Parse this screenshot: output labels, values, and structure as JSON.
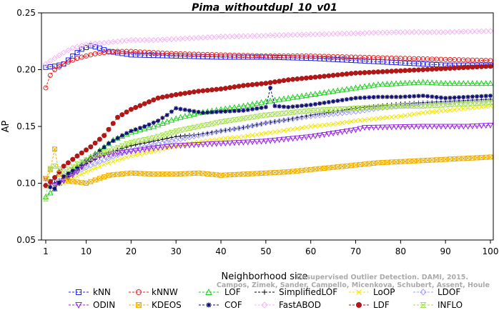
{
  "chart_data": {
    "type": "line",
    "title": "Pima_withoutdupl_10_v01",
    "xlabel": "Neighborhood size",
    "ylabel": "AP",
    "xlim": [
      1,
      100
    ],
    "ylim": [
      0.05,
      0.25
    ],
    "xticks": [
      1,
      10,
      20,
      30,
      40,
      50,
      60,
      70,
      80,
      90,
      100
    ],
    "yticks": [
      0.05,
      0.1,
      0.15,
      0.2,
      0.25
    ],
    "ytick_labels": [
      "0.05",
      "0.10",
      "0.15",
      "0.20",
      "0.25"
    ],
    "grid": false,
    "legend_position": "bottom",
    "credit_lines": [
      "Unsupervised Outlier Detection. DAMI, 2015.",
      "Campos, Zimek, Sander, Campello, Micenkova, Schubert, Assent, Houle"
    ],
    "series": [
      {
        "name": "kNN",
        "color": "#1f1fe6",
        "marker": "square",
        "points": [
          [
            1,
            0.202
          ],
          [
            3,
            0.203
          ],
          [
            5,
            0.205
          ],
          [
            7,
            0.212
          ],
          [
            9,
            0.218
          ],
          [
            11,
            0.221
          ],
          [
            13,
            0.219
          ],
          [
            15,
            0.216
          ],
          [
            20,
            0.213
          ],
          [
            30,
            0.212
          ],
          [
            40,
            0.211
          ],
          [
            50,
            0.211
          ],
          [
            60,
            0.21
          ],
          [
            70,
            0.208
          ],
          [
            80,
            0.206
          ],
          [
            90,
            0.204
          ],
          [
            100,
            0.204
          ]
        ]
      },
      {
        "name": "kNNW",
        "color": "#e62020",
        "marker": "circle",
        "points": [
          [
            1,
            0.184
          ],
          [
            2,
            0.195
          ],
          [
            3,
            0.2
          ],
          [
            5,
            0.205
          ],
          [
            8,
            0.21
          ],
          [
            12,
            0.214
          ],
          [
            16,
            0.216
          ],
          [
            20,
            0.216
          ],
          [
            30,
            0.214
          ],
          [
            40,
            0.213
          ],
          [
            50,
            0.212
          ],
          [
            60,
            0.212
          ],
          [
            70,
            0.211
          ],
          [
            80,
            0.21
          ],
          [
            90,
            0.209
          ],
          [
            100,
            0.208
          ]
        ]
      },
      {
        "name": "LOF",
        "color": "#20d020",
        "marker": "triangle",
        "points": [
          [
            1,
            0.088
          ],
          [
            3,
            0.095
          ],
          [
            5,
            0.105
          ],
          [
            8,
            0.115
          ],
          [
            12,
            0.126
          ],
          [
            16,
            0.138
          ],
          [
            20,
            0.145
          ],
          [
            25,
            0.15
          ],
          [
            30,
            0.157
          ],
          [
            35,
            0.162
          ],
          [
            40,
            0.165
          ],
          [
            45,
            0.168
          ],
          [
            50,
            0.172
          ],
          [
            55,
            0.175
          ],
          [
            60,
            0.178
          ],
          [
            65,
            0.181
          ],
          [
            70,
            0.184
          ],
          [
            75,
            0.187
          ],
          [
            80,
            0.188
          ],
          [
            85,
            0.189
          ],
          [
            90,
            0.188
          ],
          [
            95,
            0.188
          ],
          [
            100,
            0.188
          ]
        ]
      },
      {
        "name": "SimplifiedLOF",
        "color": "#000000",
        "marker": "plus",
        "points": [
          [
            1,
            0.098
          ],
          [
            5,
            0.103
          ],
          [
            10,
            0.117
          ],
          [
            15,
            0.127
          ],
          [
            20,
            0.133
          ],
          [
            25,
            0.137
          ],
          [
            30,
            0.141
          ],
          [
            35,
            0.143
          ],
          [
            40,
            0.146
          ],
          [
            45,
            0.149
          ],
          [
            50,
            0.153
          ],
          [
            55,
            0.156
          ],
          [
            60,
            0.16
          ],
          [
            65,
            0.163
          ],
          [
            70,
            0.166
          ],
          [
            75,
            0.168
          ],
          [
            80,
            0.17
          ],
          [
            85,
            0.171
          ],
          [
            90,
            0.172
          ],
          [
            95,
            0.173
          ],
          [
            100,
            0.174
          ]
        ]
      },
      {
        "name": "LoOP",
        "color": "#f2e600",
        "marker": "x",
        "points": [
          [
            1,
            0.097
          ],
          [
            5,
            0.1
          ],
          [
            10,
            0.11
          ],
          [
            15,
            0.118
          ],
          [
            20,
            0.124
          ],
          [
            25,
            0.128
          ],
          [
            30,
            0.133
          ],
          [
            35,
            0.136
          ],
          [
            40,
            0.139
          ],
          [
            45,
            0.141
          ],
          [
            50,
            0.144
          ],
          [
            55,
            0.147
          ],
          [
            60,
            0.15
          ],
          [
            65,
            0.152
          ],
          [
            70,
            0.155
          ],
          [
            75,
            0.157
          ],
          [
            80,
            0.159
          ],
          [
            85,
            0.162
          ],
          [
            90,
            0.164
          ],
          [
            95,
            0.166
          ],
          [
            100,
            0.168
          ]
        ]
      },
      {
        "name": "LDOF",
        "color": "#a0a0ff",
        "marker": "diamond",
        "points": [
          [
            1,
            0.098
          ],
          [
            5,
            0.104
          ],
          [
            10,
            0.114
          ],
          [
            15,
            0.122
          ],
          [
            20,
            0.129
          ],
          [
            25,
            0.134
          ],
          [
            30,
            0.138
          ],
          [
            35,
            0.142
          ],
          [
            40,
            0.146
          ],
          [
            45,
            0.149
          ],
          [
            50,
            0.153
          ],
          [
            55,
            0.156
          ],
          [
            60,
            0.159
          ],
          [
            65,
            0.161
          ],
          [
            70,
            0.163
          ],
          [
            75,
            0.166
          ],
          [
            80,
            0.168
          ],
          [
            85,
            0.17
          ],
          [
            90,
            0.171
          ],
          [
            95,
            0.172
          ],
          [
            100,
            0.173
          ]
        ]
      },
      {
        "name": "ODIN",
        "color": "#9a20e6",
        "marker": "triangle-down",
        "points": [
          [
            1,
            0.104
          ],
          [
            3,
            0.098
          ],
          [
            5,
            0.102
          ],
          [
            8,
            0.11
          ],
          [
            10,
            0.118
          ],
          [
            13,
            0.124
          ],
          [
            16,
            0.126
          ],
          [
            20,
            0.128
          ],
          [
            25,
            0.131
          ],
          [
            30,
            0.133
          ],
          [
            35,
            0.134
          ],
          [
            40,
            0.135
          ],
          [
            45,
            0.136
          ],
          [
            50,
            0.137
          ],
          [
            55,
            0.139
          ],
          [
            60,
            0.141
          ],
          [
            65,
            0.144
          ],
          [
            70,
            0.147
          ],
          [
            72,
            0.149
          ],
          [
            85,
            0.15
          ],
          [
            90,
            0.15
          ],
          [
            95,
            0.15
          ],
          [
            100,
            0.151
          ]
        ]
      },
      {
        "name": "KDEOS",
        "color": "#f0b000",
        "marker": "square-x",
        "points": [
          [
            1,
            0.104
          ],
          [
            2,
            0.112
          ],
          [
            3,
            0.13
          ],
          [
            4,
            0.108
          ],
          [
            6,
            0.102
          ],
          [
            10,
            0.1
          ],
          [
            15,
            0.107
          ],
          [
            20,
            0.109
          ],
          [
            25,
            0.108
          ],
          [
            30,
            0.108
          ],
          [
            35,
            0.109
          ],
          [
            40,
            0.107
          ],
          [
            45,
            0.108
          ],
          [
            50,
            0.109
          ],
          [
            55,
            0.11
          ],
          [
            60,
            0.112
          ],
          [
            65,
            0.114
          ],
          [
            70,
            0.116
          ],
          [
            75,
            0.118
          ],
          [
            80,
            0.119
          ],
          [
            85,
            0.12
          ],
          [
            90,
            0.121
          ],
          [
            95,
            0.122
          ],
          [
            100,
            0.123
          ]
        ]
      },
      {
        "name": "COF",
        "color": "#10106e",
        "marker": "star",
        "points": [
          [
            1,
            0.098
          ],
          [
            3,
            0.095
          ],
          [
            5,
            0.106
          ],
          [
            8,
            0.114
          ],
          [
            12,
            0.125
          ],
          [
            15,
            0.135
          ],
          [
            18,
            0.142
          ],
          [
            20,
            0.146
          ],
          [
            23,
            0.15
          ],
          [
            26,
            0.155
          ],
          [
            28,
            0.16
          ],
          [
            30,
            0.166
          ],
          [
            33,
            0.164
          ],
          [
            36,
            0.162
          ],
          [
            40,
            0.163
          ],
          [
            45,
            0.164
          ],
          [
            50,
            0.167
          ],
          [
            51,
            0.184
          ],
          [
            52,
            0.168
          ],
          [
            55,
            0.167
          ],
          [
            60,
            0.169
          ],
          [
            65,
            0.172
          ],
          [
            70,
            0.175
          ],
          [
            75,
            0.176
          ],
          [
            80,
            0.176
          ],
          [
            85,
            0.177
          ],
          [
            90,
            0.175
          ],
          [
            95,
            0.176
          ],
          [
            100,
            0.177
          ]
        ]
      },
      {
        "name": "FastABOD",
        "color": "#f4b6f4",
        "marker": "diamond",
        "points": [
          [
            1,
            0.205
          ],
          [
            3,
            0.21
          ],
          [
            5,
            0.215
          ],
          [
            7,
            0.219
          ],
          [
            10,
            0.222
          ],
          [
            15,
            0.224
          ],
          [
            20,
            0.226
          ],
          [
            25,
            0.226
          ],
          [
            30,
            0.227
          ],
          [
            40,
            0.229
          ],
          [
            50,
            0.23
          ],
          [
            60,
            0.231
          ],
          [
            70,
            0.232
          ],
          [
            80,
            0.233
          ],
          [
            90,
            0.233
          ],
          [
            100,
            0.234
          ]
        ]
      },
      {
        "name": "LDF",
        "color": "#b01818",
        "marker": "circle-filled",
        "points": [
          [
            1,
            0.098
          ],
          [
            3,
            0.105
          ],
          [
            5,
            0.115
          ],
          [
            8,
            0.124
          ],
          [
            11,
            0.132
          ],
          [
            14,
            0.142
          ],
          [
            17,
            0.158
          ],
          [
            20,
            0.165
          ],
          [
            23,
            0.17
          ],
          [
            26,
            0.175
          ],
          [
            30,
            0.178
          ],
          [
            35,
            0.181
          ],
          [
            40,
            0.183
          ],
          [
            45,
            0.186
          ],
          [
            50,
            0.188
          ],
          [
            55,
            0.191
          ],
          [
            60,
            0.193
          ],
          [
            65,
            0.195
          ],
          [
            70,
            0.197
          ],
          [
            75,
            0.198
          ],
          [
            80,
            0.199
          ],
          [
            85,
            0.2
          ],
          [
            90,
            0.201
          ],
          [
            95,
            0.202
          ],
          [
            100,
            0.203
          ]
        ]
      },
      {
        "name": "INFLO",
        "color": "#a6e050",
        "marker": "hourglass",
        "points": [
          [
            1,
            0.086
          ],
          [
            2,
            0.113
          ],
          [
            3,
            0.115
          ],
          [
            5,
            0.11
          ],
          [
            8,
            0.117
          ],
          [
            12,
            0.124
          ],
          [
            16,
            0.13
          ],
          [
            20,
            0.136
          ],
          [
            25,
            0.14
          ],
          [
            30,
            0.146
          ],
          [
            35,
            0.15
          ],
          [
            40,
            0.154
          ],
          [
            45,
            0.157
          ],
          [
            50,
            0.16
          ],
          [
            55,
            0.162
          ],
          [
            60,
            0.164
          ],
          [
            65,
            0.165
          ],
          [
            70,
            0.166
          ],
          [
            75,
            0.167
          ],
          [
            80,
            0.168
          ],
          [
            85,
            0.168
          ],
          [
            90,
            0.169
          ],
          [
            95,
            0.17
          ],
          [
            100,
            0.171
          ]
        ]
      }
    ]
  }
}
